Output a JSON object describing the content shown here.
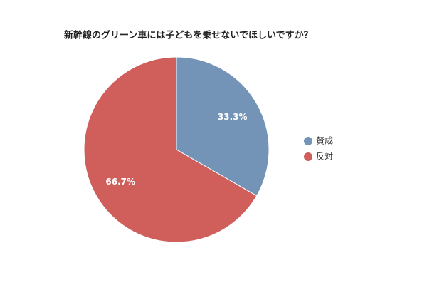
{
  "chart_data": {
    "type": "pie",
    "title": "新幹線のグリーン車には子どもを乗せないでほしいですか？",
    "categories": [
      "賛成",
      "反対"
    ],
    "values": [
      33.3,
      66.7
    ],
    "value_labels": [
      "33.3%",
      "66.7%"
    ],
    "colors": [
      "#7393b7",
      "#d05f5c"
    ],
    "legend": "right"
  }
}
